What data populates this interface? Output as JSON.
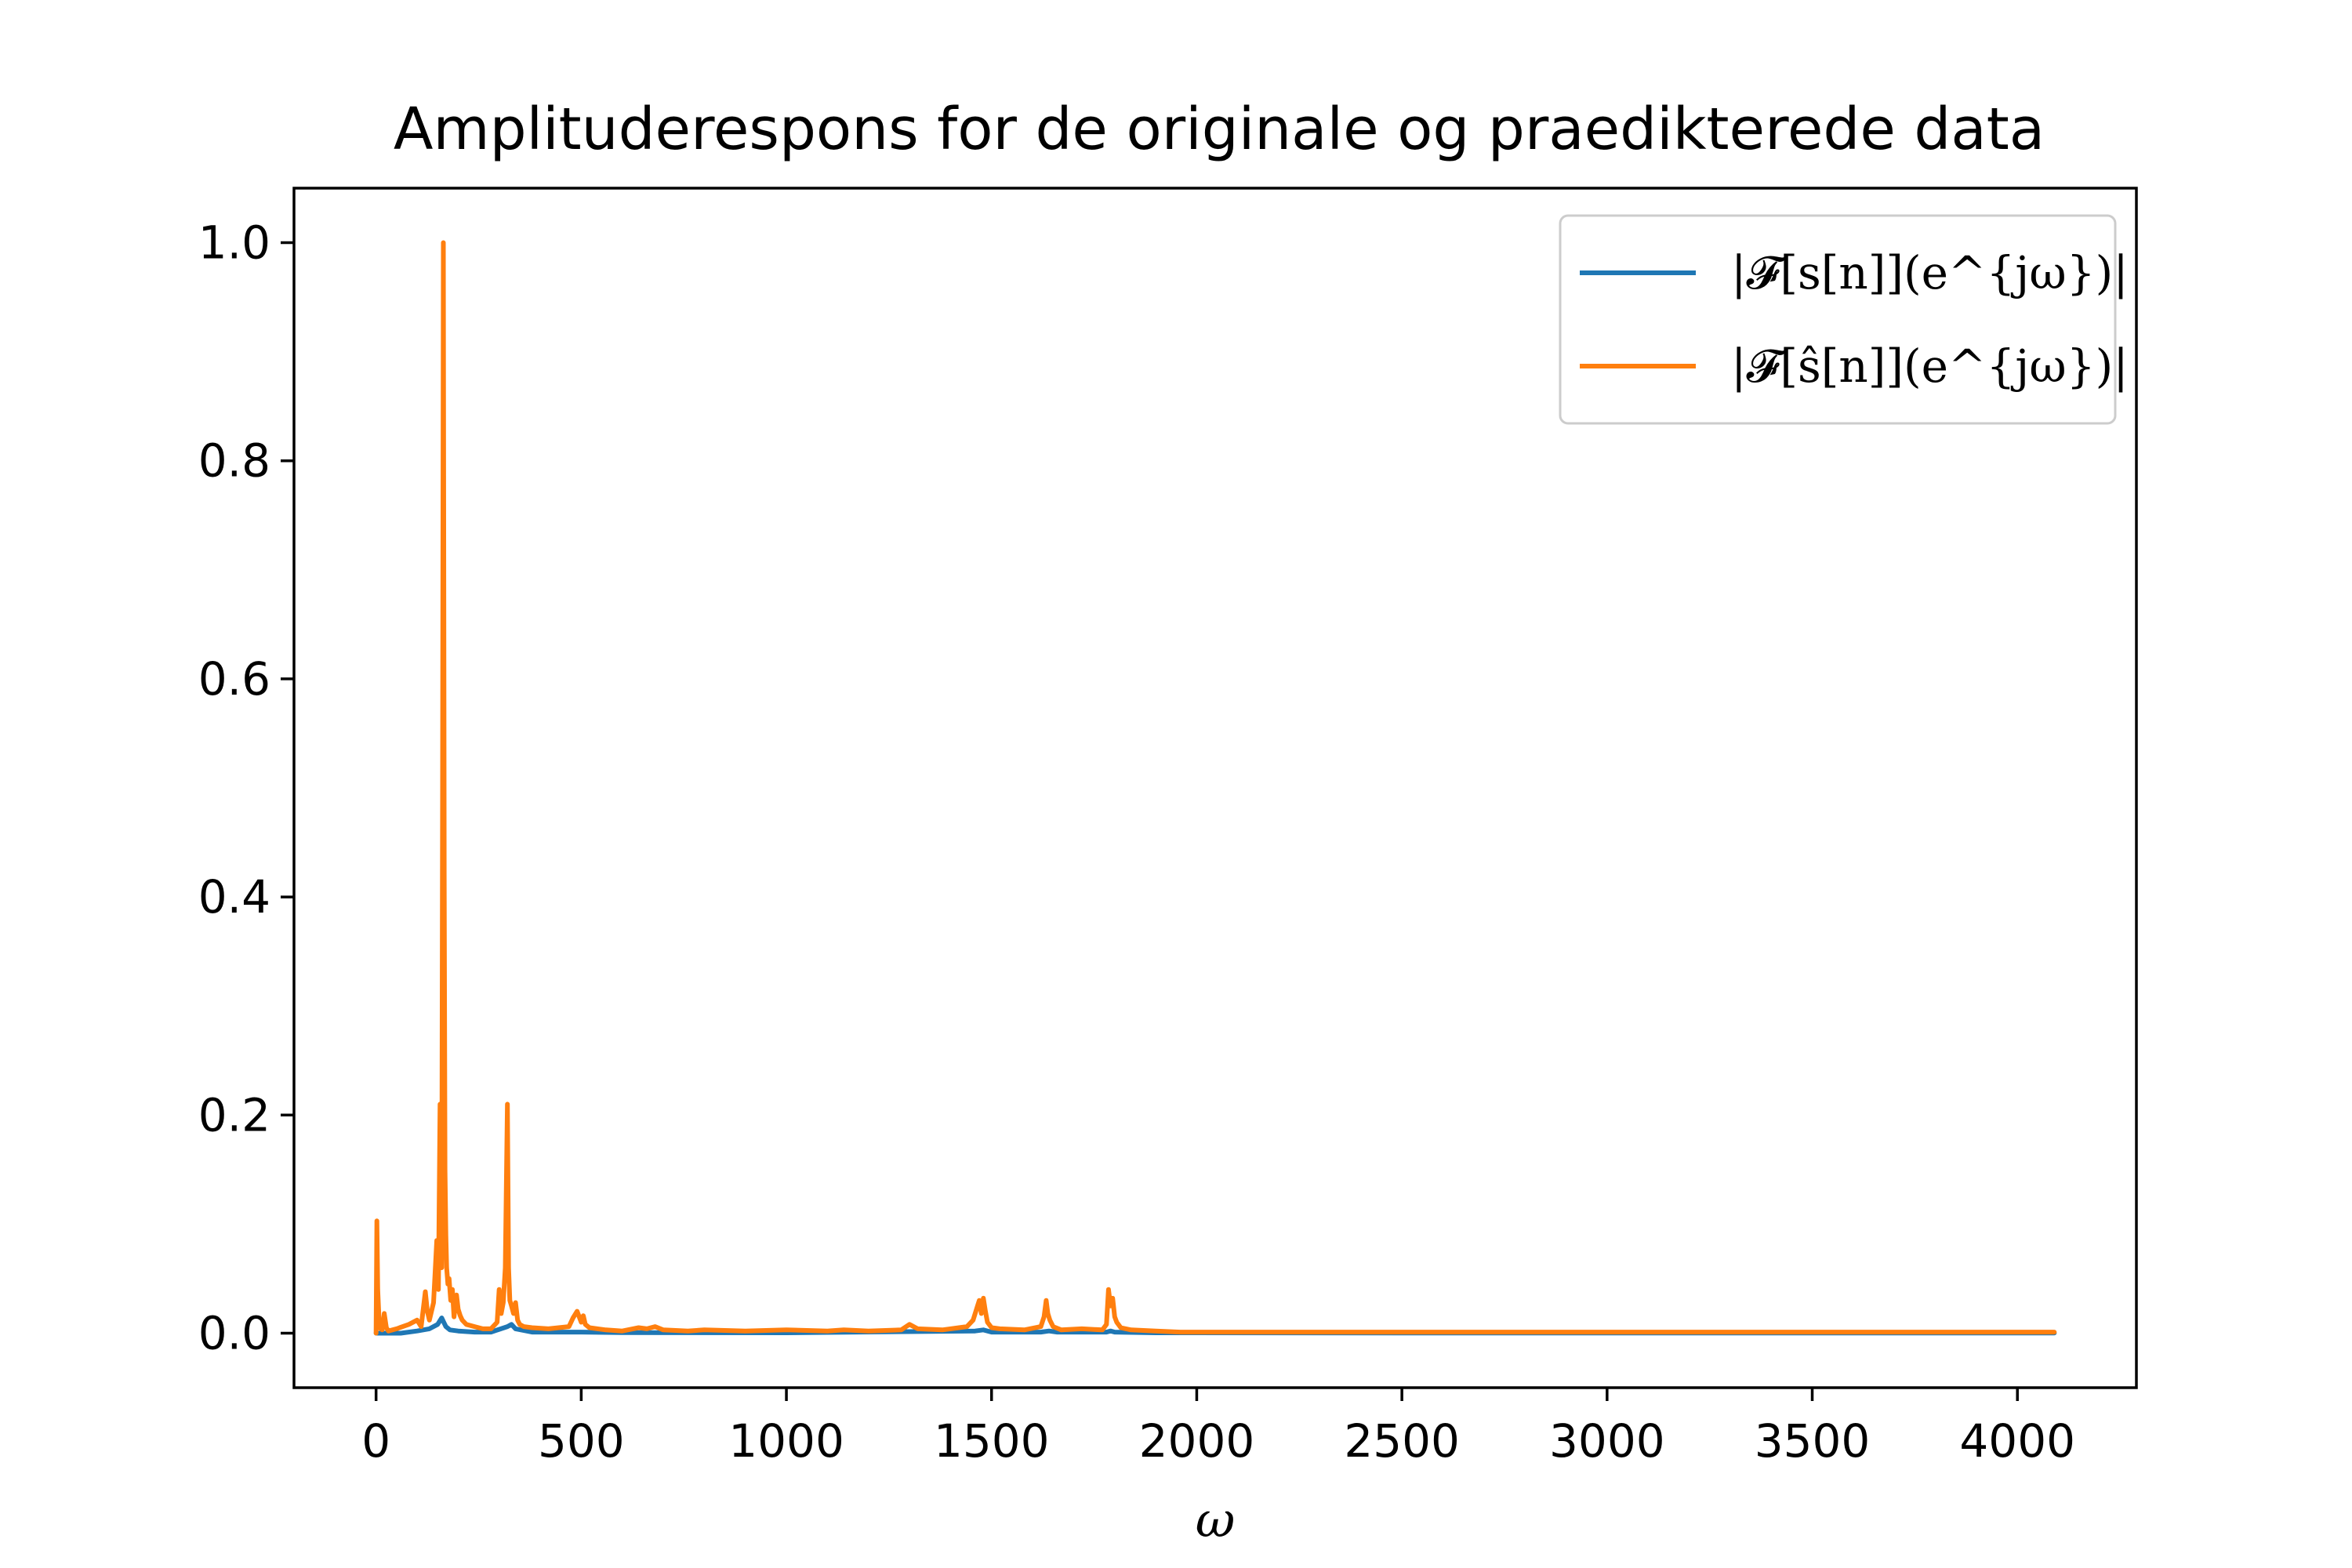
{
  "chart_data": {
    "type": "line",
    "title": "Amplituderespons for de originale og praedikterede data",
    "xlabel": "ω",
    "ylabel": "",
    "xlim": [
      -200,
      4290
    ],
    "ylim": [
      -0.05,
      1.05
    ],
    "xticks": [
      0,
      500,
      1000,
      1500,
      2000,
      2500,
      3000,
      3500,
      4000
    ],
    "yticks": [
      0.0,
      0.2,
      0.4,
      0.6,
      0.8,
      1.0
    ],
    "xtick_labels": [
      "0",
      "500",
      "1000",
      "1500",
      "2000",
      "2500",
      "3000",
      "3500",
      "4000"
    ],
    "ytick_labels": [
      "0.0",
      "0.2",
      "0.4",
      "0.6",
      "0.8",
      "1.0"
    ],
    "grid": false,
    "legend_position": "top-right",
    "series": [
      {
        "name": "|𝓕[s[n]](e^{jω})|",
        "color": "#1f77b4",
        "x": [
          0,
          20,
          60,
          100,
          130,
          150,
          160,
          165,
          170,
          180,
          200,
          240,
          280,
          320,
          330,
          340,
          380,
          450,
          500,
          600,
          1000,
          1460,
          1480,
          1500,
          1620,
          1640,
          1660,
          1780,
          1790,
          1800,
          1900,
          2500,
          3000,
          3500,
          4090
        ],
        "y": [
          0.0,
          0.0,
          0.0,
          0.002,
          0.004,
          0.008,
          0.014,
          0.01,
          0.006,
          0.003,
          0.002,
          0.001,
          0.001,
          0.006,
          0.008,
          0.004,
          0.001,
          0.001,
          0.001,
          0.0005,
          0.0003,
          0.002,
          0.003,
          0.001,
          0.001,
          0.002,
          0.001,
          0.001,
          0.002,
          0.001,
          0.0003,
          0.0002,
          0.0001,
          0.0001,
          0.0001
        ]
      },
      {
        "name": "|𝓕[ŝ[n]](e^{jω})|",
        "color": "#ff7f0e",
        "x": [
          0,
          2,
          4,
          8,
          15,
          20,
          25,
          30,
          50,
          80,
          100,
          110,
          120,
          125,
          130,
          140,
          148,
          152,
          156,
          160,
          162,
          164,
          166,
          168,
          170,
          172,
          175,
          178,
          182,
          186,
          190,
          196,
          200,
          205,
          210,
          220,
          240,
          260,
          280,
          295,
          300,
          305,
          310,
          315,
          320,
          323,
          326,
          330,
          335,
          340,
          345,
          350,
          360,
          380,
          420,
          470,
          480,
          490,
          500,
          505,
          510,
          520,
          560,
          600,
          640,
          660,
          680,
          700,
          760,
          800,
          900,
          1000,
          1100,
          1140,
          1200,
          1280,
          1300,
          1320,
          1380,
          1440,
          1455,
          1465,
          1470,
          1475,
          1480,
          1485,
          1490,
          1500,
          1520,
          1580,
          1620,
          1628,
          1633,
          1637,
          1642,
          1650,
          1670,
          1720,
          1770,
          1780,
          1785,
          1790,
          1795,
          1800,
          1805,
          1815,
          1840,
          1900,
          1960,
          2000,
          2100,
          2300,
          2500,
          2700,
          2900,
          3100,
          3300,
          3500,
          3700,
          3900,
          4090
        ],
        "y": [
          0.0,
          0.103,
          0.04,
          0.005,
          0.003,
          0.018,
          0.005,
          0.002,
          0.004,
          0.008,
          0.012,
          0.006,
          0.038,
          0.02,
          0.012,
          0.028,
          0.085,
          0.04,
          0.21,
          0.06,
          0.5,
          1.0,
          0.42,
          0.15,
          0.09,
          0.06,
          0.045,
          0.05,
          0.03,
          0.04,
          0.015,
          0.035,
          0.022,
          0.016,
          0.012,
          0.008,
          0.006,
          0.004,
          0.004,
          0.01,
          0.04,
          0.018,
          0.028,
          0.06,
          0.21,
          0.06,
          0.03,
          0.025,
          0.018,
          0.028,
          0.012,
          0.008,
          0.006,
          0.005,
          0.004,
          0.006,
          0.014,
          0.02,
          0.01,
          0.016,
          0.008,
          0.005,
          0.003,
          0.002,
          0.005,
          0.004,
          0.006,
          0.003,
          0.002,
          0.003,
          0.002,
          0.003,
          0.002,
          0.003,
          0.002,
          0.003,
          0.008,
          0.004,
          0.003,
          0.006,
          0.012,
          0.024,
          0.03,
          0.018,
          0.032,
          0.02,
          0.01,
          0.005,
          0.004,
          0.003,
          0.006,
          0.015,
          0.03,
          0.018,
          0.012,
          0.006,
          0.003,
          0.004,
          0.003,
          0.008,
          0.04,
          0.025,
          0.032,
          0.015,
          0.01,
          0.005,
          0.003,
          0.002,
          0.001,
          0.001,
          0.001,
          0.001,
          0.001,
          0.001,
          0.001,
          0.001,
          0.001,
          0.001,
          0.001,
          0.001,
          0.001
        ]
      }
    ]
  }
}
